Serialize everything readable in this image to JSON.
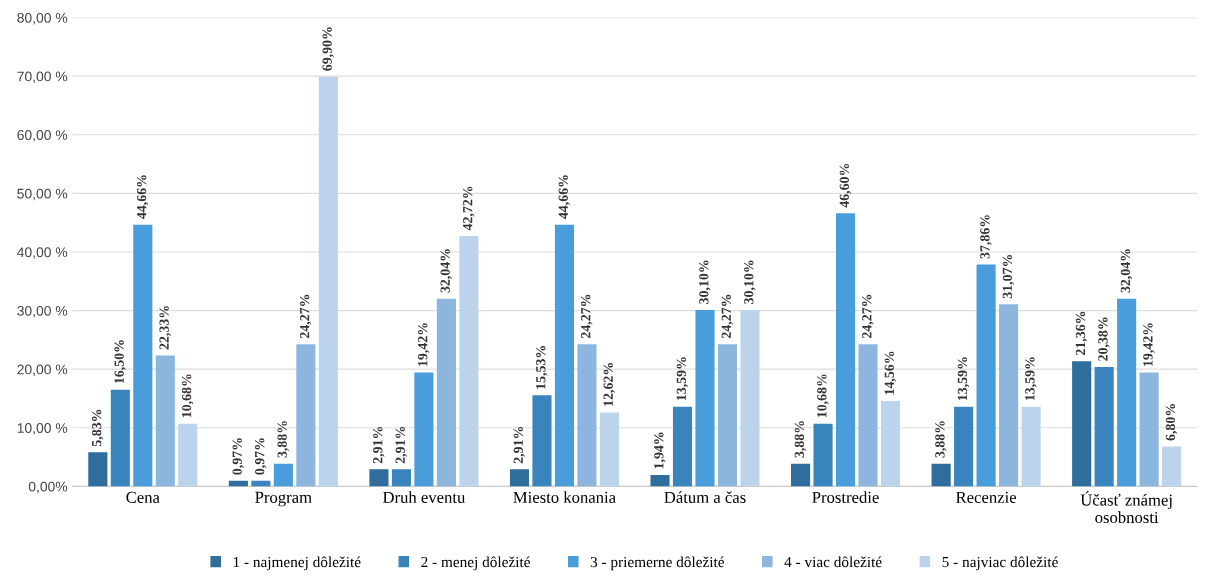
{
  "chart_data": {
    "type": "bar",
    "categories": [
      "Cena",
      "Program",
      "Druh eventu",
      "Miesto konania",
      "Dátum a čas",
      "Prostredie",
      "Recenzie",
      "Účasť známej\nosobnosti"
    ],
    "series": [
      {
        "name": "1 - najmenej dôležité",
        "color": "#2f6d9c",
        "values": [
          5.83,
          0.97,
          2.91,
          2.91,
          1.94,
          3.88,
          3.88,
          21.36
        ],
        "value_labels": [
          "5,83%",
          "0,97%",
          "2,91%",
          "2,91%",
          "1,94%",
          "3,88%",
          "3,88%",
          "21,36%"
        ]
      },
      {
        "name": "2 - menej dôležité",
        "color": "#3a84bd",
        "values": [
          16.5,
          0.97,
          2.91,
          15.53,
          13.59,
          10.68,
          13.59,
          20.38
        ],
        "value_labels": [
          "16,50%",
          "0,97%",
          "2,91%",
          "15,53%",
          "13,59%",
          "10,68%",
          "13,59%",
          "20,38%"
        ]
      },
      {
        "name": "3 - priemerne dôležité",
        "color": "#4a9ddb",
        "values": [
          44.66,
          3.88,
          19.42,
          44.66,
          30.1,
          46.6,
          37.86,
          32.04
        ],
        "value_labels": [
          "44,66%",
          "3,88%",
          "19,42%",
          "44,66%",
          "30,10%",
          "46,60%",
          "37,86%",
          "32,04%"
        ]
      },
      {
        "name": "4 - viac dôležité",
        "color": "#8db6df",
        "values": [
          22.33,
          24.27,
          32.04,
          24.27,
          24.27,
          24.27,
          31.07,
          19.42
        ],
        "value_labels": [
          "22,33%",
          "24,27%",
          "32,04%",
          "24,27%",
          "24,27%",
          "24,27%",
          "31,07%",
          "19,42%"
        ]
      },
      {
        "name": "5 - najviac dôležité",
        "color": "#bcd3ec",
        "values": [
          10.68,
          69.9,
          42.72,
          12.62,
          30.1,
          14.56,
          13.59,
          6.8
        ],
        "value_labels": [
          "10,68%",
          "69,90%",
          "42,72%",
          "12,62%",
          "30,10%",
          "14,56%",
          "13,59%",
          "6,80%"
        ]
      }
    ],
    "ylim": [
      0,
      80
    ],
    "yticks": [
      {
        "value": 0,
        "label": "0,00%"
      },
      {
        "value": 10,
        "label": "10,00 %"
      },
      {
        "value": 20,
        "label": "20,00 %"
      },
      {
        "value": 30,
        "label": "30,00 %"
      },
      {
        "value": 40,
        "label": "40,00 %"
      },
      {
        "value": 50,
        "label": "50,00 %"
      },
      {
        "value": 60,
        "label": "60,00 %"
      },
      {
        "value": 70,
        "label": "70,00 %"
      },
      {
        "value": 80,
        "label": "80,00 %"
      }
    ],
    "grid": "y",
    "legend": "bottom"
  }
}
